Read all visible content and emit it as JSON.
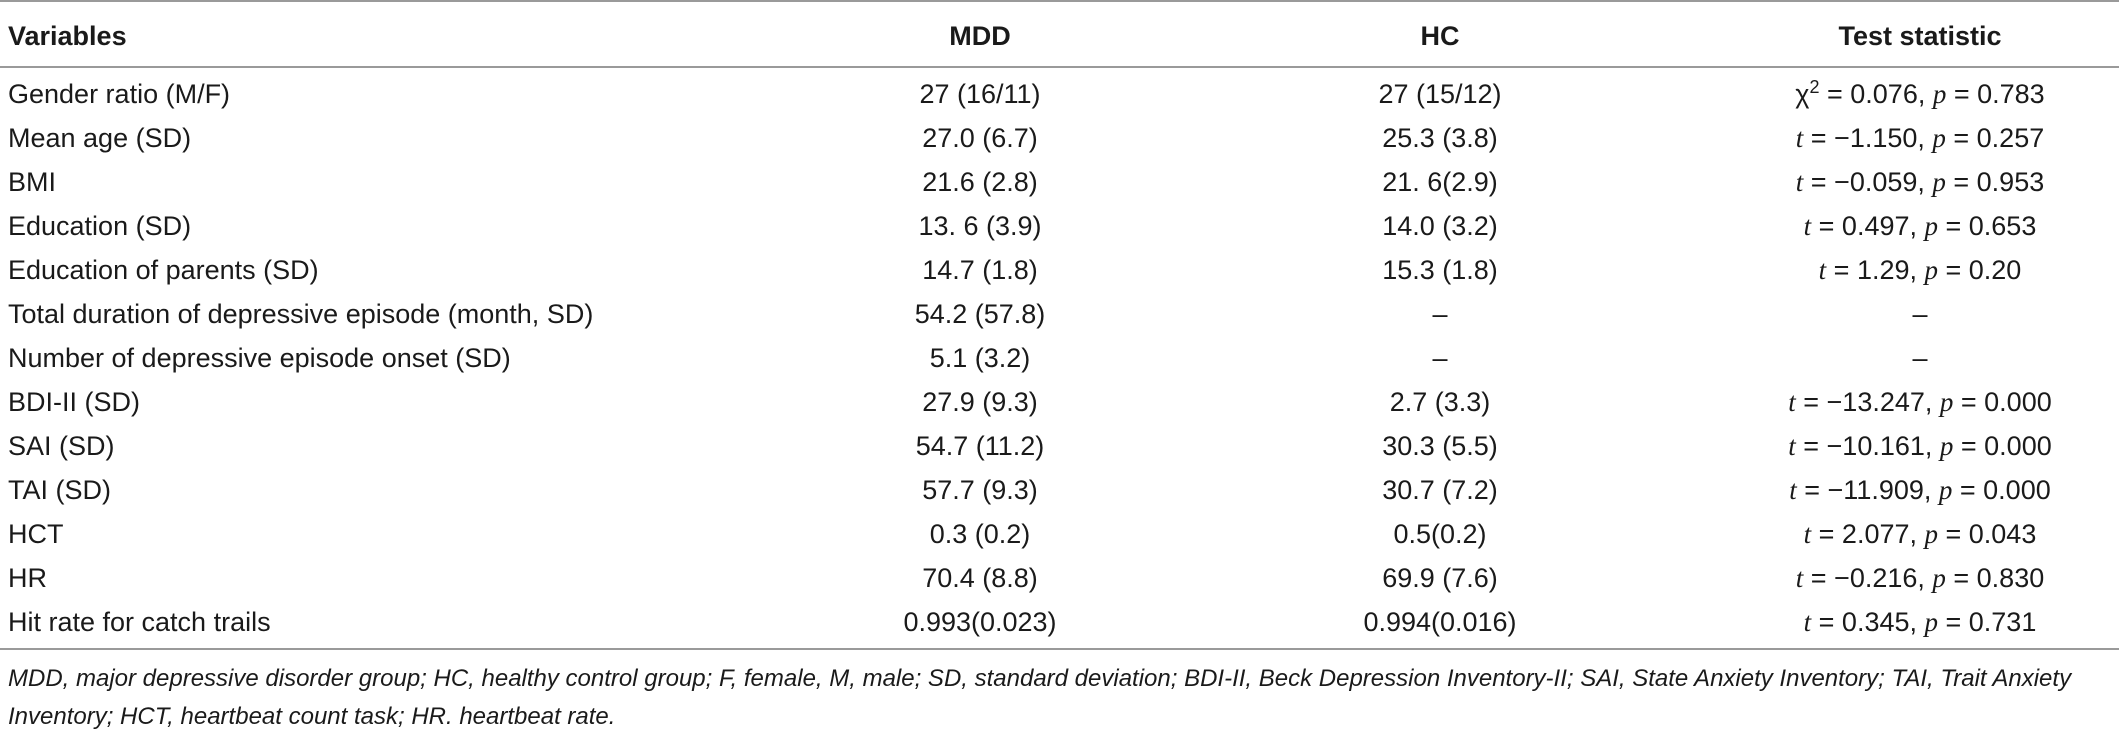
{
  "table": {
    "headers": [
      "Variables",
      "MDD",
      "HC",
      "Test statistic"
    ],
    "rows": [
      {
        "variable": "Gender ratio (M/F)",
        "mdd": "27 (16/11)",
        "hc": "27 (15/12)",
        "stat": "χ2 = 0.076, p = 0.783"
      },
      {
        "variable": "Mean age (SD)",
        "mdd": "27.0 (6.7)",
        "hc": "25.3 (3.8)",
        "stat": "t = −1.150, p = 0.257"
      },
      {
        "variable": "BMI",
        "mdd": "21.6 (2.8)",
        "hc": "21. 6(2.9)",
        "stat": "t = −0.059, p = 0.953"
      },
      {
        "variable": "Education (SD)",
        "mdd": "13. 6 (3.9)",
        "hc": "14.0 (3.2)",
        "stat": "t = 0.497, p = 0.653"
      },
      {
        "variable": "Education of parents (SD)",
        "mdd": "14.7 (1.8)",
        "hc": "15.3 (1.8)",
        "stat": "t = 1.29, p = 0.20"
      },
      {
        "variable": "Total duration of depressive episode (month, SD)",
        "mdd": "54.2 (57.8)",
        "hc": "–",
        "stat": "–"
      },
      {
        "variable": "Number of depressive episode onset (SD)",
        "mdd": "5.1 (3.2)",
        "hc": "–",
        "stat": "–"
      },
      {
        "variable": "BDI-II (SD)",
        "mdd": "27.9 (9.3)",
        "hc": "2.7 (3.3)",
        "stat": "t = −13.247, p = 0.000"
      },
      {
        "variable": "SAI (SD)",
        "mdd": "54.7 (11.2)",
        "hc": "30.3 (5.5)",
        "stat": "t = −10.161, p = 0.000"
      },
      {
        "variable": "TAI (SD)",
        "mdd": "57.7 (9.3)",
        "hc": "30.7 (7.2)",
        "stat": "t = −11.909, p = 0.000"
      },
      {
        "variable": "HCT",
        "mdd": "0.3 (0.2)",
        "hc": "0.5(0.2)",
        "stat": "t = 2.077, p = 0.043"
      },
      {
        "variable": "HR",
        "mdd": "70.4 (8.8)",
        "hc": "69.9 (7.6)",
        "stat": "t = −0.216, p = 0.830"
      },
      {
        "variable": "Hit rate for catch trails",
        "mdd": "0.993(0.023)",
        "hc": "0.994(0.016)",
        "stat": "t = 0.345, p = 0.731"
      }
    ]
  },
  "footnote": "MDD, major depressive disorder group; HC, healthy control group; F, female, M, male; SD, standard deviation; BDI-II, Beck Depression Inventory-II; SAI, State Anxiety Inventory; TAI, Trait Anxiety Inventory; HCT, heartbeat count task; HR. heartbeat rate."
}
